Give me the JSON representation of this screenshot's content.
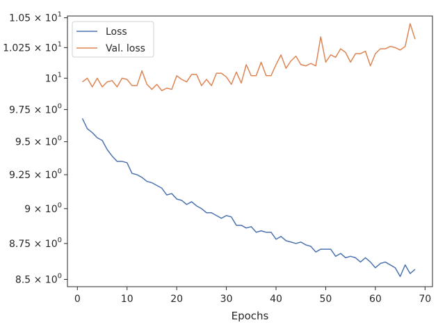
{
  "chart_data": {
    "type": "line",
    "title": "",
    "xlabel": "Epochs",
    "ylabel": "",
    "y_scale": "log",
    "xlim": [
      -2,
      71.5
    ],
    "ylim": [
      8.45,
      10.515
    ],
    "grid": false,
    "legend_position": "top-left",
    "x_ticks": [
      0,
      10,
      20,
      30,
      40,
      50,
      60,
      70
    ],
    "x_tick_labels": [
      "0",
      "10",
      "20",
      "30",
      "40",
      "50",
      "60",
      "70"
    ],
    "y_ticks": [
      8.5,
      8.75,
      9.0,
      9.25,
      9.5,
      9.75,
      10.0,
      10.25,
      10.5
    ],
    "y_tick_labels": [
      {
        "mantissa": "8.5",
        "base": "10",
        "exp": "0"
      },
      {
        "mantissa": "8.75",
        "base": "10",
        "exp": "0"
      },
      {
        "mantissa": "9",
        "base": "10",
        "exp": "0"
      },
      {
        "mantissa": "9.25",
        "base": "10",
        "exp": "0"
      },
      {
        "mantissa": "9.5",
        "base": "10",
        "exp": "0"
      },
      {
        "mantissa": "9.75",
        "base": "10",
        "exp": "0"
      },
      {
        "mantissa": "",
        "base": "10",
        "exp": "1"
      },
      {
        "mantissa": "1.025",
        "base": "10",
        "exp": "1"
      },
      {
        "mantissa": "1.05",
        "base": "10",
        "exp": "1"
      }
    ],
    "x": [
      1,
      2,
      3,
      4,
      5,
      6,
      7,
      8,
      9,
      10,
      11,
      12,
      13,
      14,
      15,
      16,
      17,
      18,
      19,
      20,
      21,
      22,
      23,
      24,
      25,
      26,
      27,
      28,
      29,
      30,
      31,
      32,
      33,
      34,
      35,
      36,
      37,
      38,
      39,
      40,
      41,
      42,
      43,
      44,
      45,
      46,
      47,
      48,
      49,
      50,
      51,
      52,
      53,
      54,
      55,
      56,
      57,
      58,
      59,
      60,
      61,
      62,
      63,
      64,
      65,
      66,
      67,
      68
    ],
    "series": [
      {
        "name": "Loss",
        "color": "#4c72b0",
        "values": [
          9.68,
          9.6,
          9.57,
          9.53,
          9.51,
          9.44,
          9.39,
          9.35,
          9.35,
          9.34,
          9.26,
          9.25,
          9.23,
          9.2,
          9.19,
          9.17,
          9.15,
          9.1,
          9.11,
          9.07,
          9.06,
          9.03,
          9.05,
          9.02,
          9.0,
          8.97,
          8.97,
          8.95,
          8.93,
          8.95,
          8.94,
          8.88,
          8.88,
          8.86,
          8.87,
          8.83,
          8.84,
          8.83,
          8.83,
          8.78,
          8.8,
          8.77,
          8.76,
          8.75,
          8.76,
          8.74,
          8.73,
          8.69,
          8.71,
          8.71,
          8.71,
          8.66,
          8.68,
          8.65,
          8.66,
          8.65,
          8.62,
          8.65,
          8.62,
          8.58,
          8.61,
          8.62,
          8.6,
          8.58,
          8.52,
          8.6,
          8.54,
          8.57
        ]
      },
      {
        "name": "Val. loss",
        "color": "#dd8452",
        "values": [
          9.97,
          10.0,
          9.93,
          10.0,
          9.93,
          9.97,
          9.98,
          9.93,
          10.0,
          9.99,
          9.94,
          9.94,
          10.06,
          9.95,
          9.91,
          9.95,
          9.9,
          9.92,
          9.91,
          10.02,
          9.99,
          9.97,
          10.03,
          10.03,
          9.94,
          9.99,
          9.94,
          10.04,
          10.04,
          10.01,
          9.95,
          10.05,
          9.96,
          10.11,
          10.02,
          10.02,
          10.13,
          10.02,
          10.02,
          10.11,
          10.19,
          10.08,
          10.14,
          10.18,
          10.11,
          10.1,
          10.12,
          10.1,
          10.34,
          10.13,
          10.19,
          10.17,
          10.24,
          10.21,
          10.13,
          10.2,
          10.2,
          10.22,
          10.1,
          10.2,
          10.24,
          10.24,
          10.26,
          10.25,
          10.23,
          10.26,
          10.45,
          10.32
        ]
      }
    ]
  }
}
